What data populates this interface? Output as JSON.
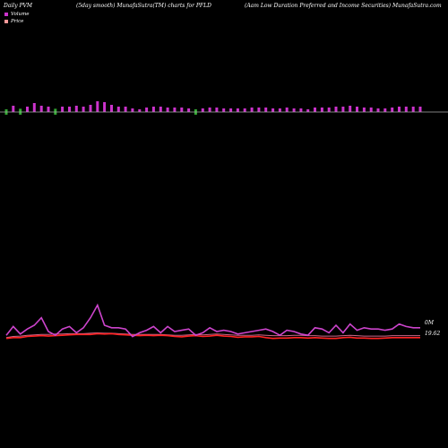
{
  "header": {
    "left": "Daily PVM",
    "middle": "(5day smooth) MunafaSutra(TM) charts for PFLD",
    "right": "(Aam Low  Duration  Preferred and Income   Securities) MunafaSutra.com"
  },
  "legend": {
    "volume": "Volume",
    "price": "Price"
  },
  "side_labels": {
    "volume": "0M",
    "price": "19.62"
  },
  "colors": {
    "up_bar": "#cc33cc",
    "down_bar": "#33aa33",
    "volume_swatch": "#cc33cc",
    "price_swatch": "#ff9999",
    "volume_line": "#cc44cc",
    "price_line": "#ff2222",
    "price_line_top": "#cc6688",
    "baseline": "#aaaaaa"
  },
  "chart_data": {
    "type": "bar",
    "bars": {
      "values": [
        0.5,
        0.7,
        0.6,
        0.6,
        1.0,
        0.7,
        0.6,
        0.6,
        0.6,
        0.6,
        0.7,
        0.6,
        0.8,
        1.2,
        1.1,
        0.8,
        0.6,
        0.6,
        0.4,
        0.3,
        0.5,
        0.6,
        0.6,
        0.5,
        0.5,
        0.5,
        0.4,
        0.5,
        0.4,
        0.5,
        0.5,
        0.4,
        0.4,
        0.4,
        0.4,
        0.5,
        0.5,
        0.5,
        0.4,
        0.4,
        0.5,
        0.4,
        0.4,
        0.3,
        0.5,
        0.5,
        0.5,
        0.6,
        0.6,
        0.7,
        0.6,
        0.5,
        0.5,
        0.4,
        0.4,
        0.5,
        0.6,
        0.6,
        0.6,
        0.6
      ],
      "direction": [
        "down",
        "up",
        "down",
        "up",
        "up",
        "up",
        "up",
        "down",
        "up",
        "up",
        "up",
        "up",
        "up",
        "up",
        "up",
        "up",
        "up",
        "up",
        "up",
        "up",
        "up",
        "up",
        "up",
        "up",
        "up",
        "up",
        "up",
        "down",
        "up",
        "up",
        "up",
        "up",
        "up",
        "up",
        "up",
        "up",
        "up",
        "up",
        "up",
        "up",
        "up",
        "up",
        "up",
        "up",
        "up",
        "up",
        "up",
        "up",
        "up",
        "up",
        "up",
        "up",
        "up",
        "up",
        "up",
        "up",
        "up",
        "up",
        "up",
        "up"
      ]
    },
    "volume_line": [
      0.1,
      0.45,
      0.15,
      0.35,
      0.5,
      0.8,
      0.25,
      0.1,
      0.35,
      0.45,
      0.2,
      0.4,
      0.8,
      1.3,
      0.5,
      0.4,
      0.4,
      0.35,
      0.05,
      0.2,
      0.3,
      0.45,
      0.2,
      0.45,
      0.25,
      0.3,
      0.35,
      0.1,
      0.2,
      0.4,
      0.25,
      0.3,
      0.25,
      0.15,
      0.2,
      0.25,
      0.3,
      0.35,
      0.25,
      0.1,
      0.3,
      0.25,
      0.15,
      0.1,
      0.4,
      0.35,
      0.2,
      0.5,
      0.2,
      0.55,
      0.3,
      0.4,
      0.35,
      0.35,
      0.3,
      0.35,
      0.55,
      0.45,
      0.4,
      0.4
    ],
    "price_line": [
      19.6,
      19.62,
      19.62,
      19.65,
      19.66,
      19.67,
      19.66,
      19.67,
      19.68,
      19.69,
      19.7,
      19.7,
      19.7,
      19.72,
      19.71,
      19.72,
      19.7,
      19.69,
      19.68,
      19.67,
      19.68,
      19.67,
      19.68,
      19.67,
      19.65,
      19.64,
      19.66,
      19.67,
      19.65,
      19.66,
      19.68,
      19.66,
      19.65,
      19.63,
      19.64,
      19.64,
      19.65,
      19.62,
      19.6,
      19.61,
      19.61,
      19.62,
      19.62,
      19.61,
      19.62,
      19.61,
      19.6,
      19.6,
      19.62,
      19.63,
      19.61,
      19.61,
      19.6,
      19.6,
      19.61,
      19.62,
      19.62,
      19.62,
      19.62,
      19.62
    ],
    "price_line_top": [
      19.62,
      19.65,
      19.66,
      19.68,
      19.69,
      19.7,
      19.7,
      19.71,
      19.71,
      19.72,
      19.72,
      19.72,
      19.73,
      19.74,
      19.73,
      19.73,
      19.72,
      19.71,
      19.7,
      19.7,
      19.7,
      19.7,
      19.7,
      19.69,
      19.68,
      19.68,
      19.69,
      19.7,
      19.69,
      19.7,
      19.71,
      19.7,
      19.69,
      19.68,
      19.68,
      19.68,
      19.69,
      19.68,
      19.67,
      19.67,
      19.67,
      19.68,
      19.68,
      19.67,
      19.67,
      19.66,
      19.66,
      19.66,
      19.67,
      19.68,
      19.67,
      19.66,
      19.66,
      19.66,
      19.66,
      19.67,
      19.67,
      19.67,
      19.67,
      19.67
    ]
  }
}
